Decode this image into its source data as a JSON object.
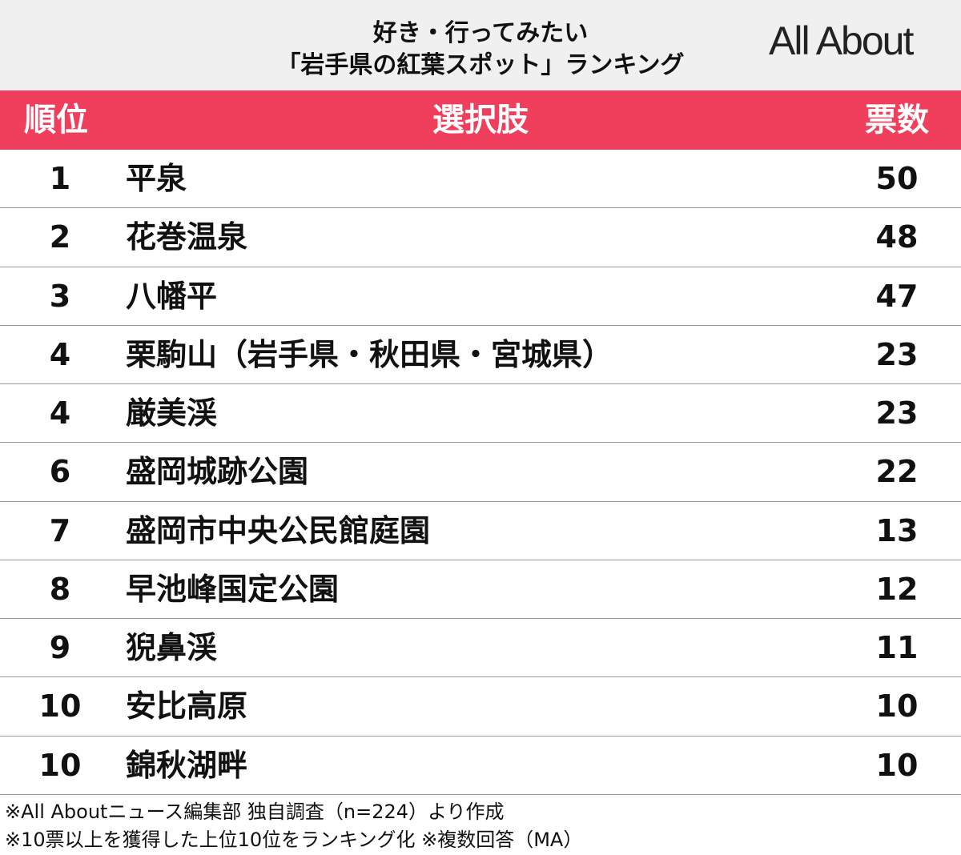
{
  "header": {
    "title_lines": [
      "好き・行ってみたい",
      "「岩手県の紅葉スポット」ランキング"
    ],
    "logo": "All About"
  },
  "table": {
    "columns": [
      "順位",
      "選択肢",
      "票数"
    ],
    "rows": [
      [
        1,
        "平泉",
        50
      ],
      [
        2,
        "花巻温泉",
        48
      ],
      [
        3,
        "八幡平",
        47
      ],
      [
        4,
        "栗駒山（岩手県・秋田県・宮城県）",
        23
      ],
      [
        4,
        "厳美渓",
        23
      ],
      [
        6,
        "盛岡城跡公園",
        22
      ],
      [
        7,
        "盛岡市中央公民館庭園",
        13
      ],
      [
        8,
        "早池峰国定公園",
        12
      ],
      [
        9,
        "猊鼻渓",
        11
      ],
      [
        10,
        "安比高原",
        10
      ],
      [
        10,
        "錦秋湖畔",
        10
      ]
    ]
  },
  "notes": [
    "※All Aboutニュース編集部 独自調査（n=224）より作成",
    "※10票以上を獲得した上位10位をランキング化 ※複数回答（MA）"
  ]
}
